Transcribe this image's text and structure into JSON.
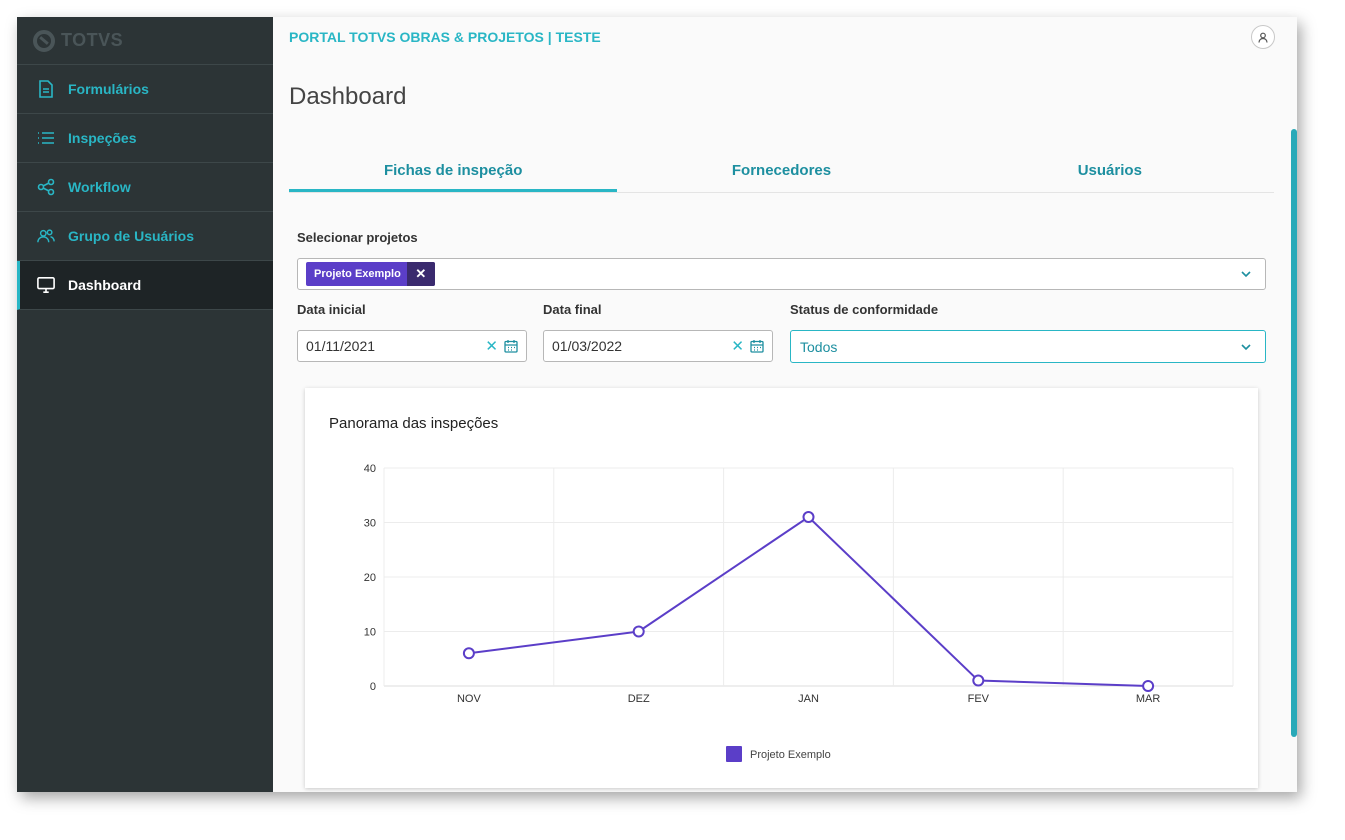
{
  "brand": {
    "name": "TOTVS"
  },
  "sidebar": {
    "items": [
      {
        "label": "Formulários",
        "icon": "document-icon"
      },
      {
        "label": "Inspeções",
        "icon": "list-icon"
      },
      {
        "label": "Workflow",
        "icon": "share-icon"
      },
      {
        "label": "Grupo de Usuários",
        "icon": "users-icon"
      },
      {
        "label": "Dashboard",
        "icon": "monitor-icon",
        "active": true
      }
    ]
  },
  "header": {
    "portal_title": "PORTAL TOTVS OBRAS & PROJETOS | TESTE"
  },
  "page": {
    "title": "Dashboard"
  },
  "tabs": [
    {
      "label": "Fichas de inspeção",
      "active": true
    },
    {
      "label": "Fornecedores"
    },
    {
      "label": "Usuários"
    }
  ],
  "filters": {
    "projects_label": "Selecionar projetos",
    "selected_project": "Projeto Exemplo",
    "start_label": "Data inicial",
    "start_value": "01/11/2021",
    "end_label": "Data final",
    "end_value": "01/03/2022",
    "status_label": "Status de conformidade",
    "status_value": "Todos"
  },
  "colors": {
    "accent": "#29b6c5",
    "series": "#5b3ec8",
    "sidebar": "#2c3436"
  },
  "chart_data": {
    "type": "line",
    "title": "Panorama das inspeções",
    "categories": [
      "NOV",
      "DEZ",
      "JAN",
      "FEV",
      "MAR"
    ],
    "series": [
      {
        "name": "Projeto Exemplo",
        "values": [
          6,
          10,
          31,
          1,
          0
        ]
      }
    ],
    "yticks": [
      0,
      10,
      20,
      30,
      40
    ],
    "ylim": [
      0,
      40
    ],
    "grid": true,
    "legend": "bottom-center"
  }
}
